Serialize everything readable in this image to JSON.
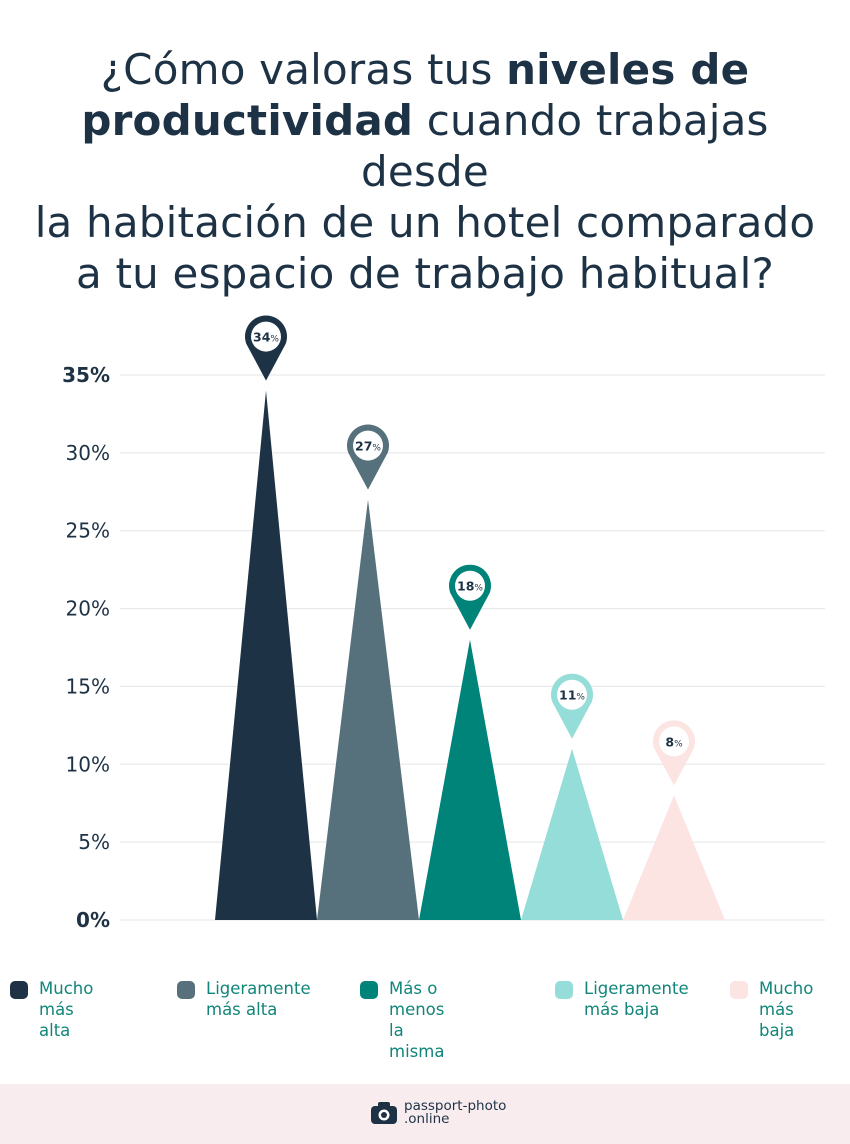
{
  "title": {
    "part1": "¿Cómo valoras tus ",
    "bold1": "niveles de",
    "bold2": "productividad",
    "part2": " cuando trabajas desde",
    "line3": "la habitación de un hotel comparado",
    "line4": "a tu espacio de trabajo habitual?"
  },
  "chart_data": {
    "type": "bar",
    "title": "¿Cómo valoras tus niveles de productividad cuando trabajas desde la habitación de un hotel comparado a tu espacio de trabajo habitual?",
    "categories": [
      "Mucho más alta",
      "Ligeramente más alta",
      "Más o menos la misma",
      "Ligeramente más baja",
      "Mucho más baja"
    ],
    "values": [
      34,
      27,
      18,
      11,
      8
    ],
    "value_labels": [
      "34%",
      "27%",
      "18%",
      "11%",
      "8%"
    ],
    "colors": [
      "#1e3246",
      "#57717c",
      "#008379",
      "#95ddd8",
      "#fbe4e2"
    ],
    "yticks": [
      "0%",
      "5%",
      "10%",
      "15%",
      "20%",
      "25%",
      "30%",
      "35%"
    ],
    "ytick_values": [
      0,
      5,
      10,
      15,
      20,
      25,
      30,
      35
    ],
    "ylim": [
      0,
      35
    ],
    "grid": true,
    "legend": "bottom",
    "bar_shape": "triangle"
  },
  "legend": {
    "items": [
      {
        "line1": "Mucho más",
        "line2": "alta",
        "color": "#1e3246"
      },
      {
        "line1": "Ligeramente",
        "line2": "más alta",
        "color": "#57717c"
      },
      {
        "line1": "Más o menos",
        "line2": "la misma",
        "color": "#008379"
      },
      {
        "line1": "Ligeramente",
        "line2": "más baja",
        "color": "#95ddd8"
      },
      {
        "line1": "Mucho",
        "line2": "más baja",
        "color": "#fbe4e2"
      }
    ]
  },
  "footer": {
    "brand_line1": "passport-photo",
    "brand_line2": ".online",
    "icon": "camera-icon"
  }
}
